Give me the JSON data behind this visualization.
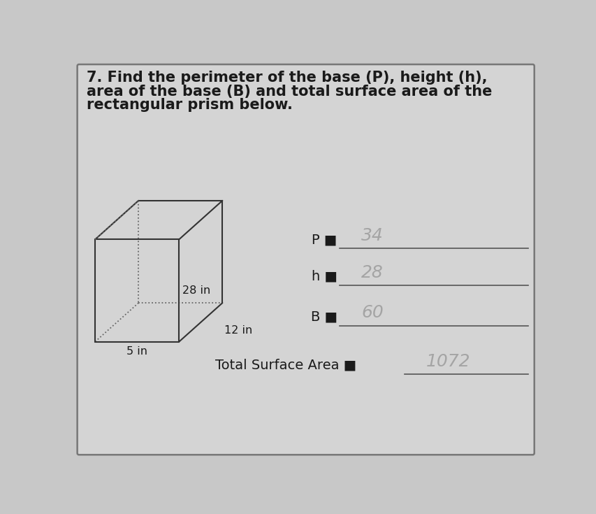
{
  "title_line1": "7. Find the perimeter of the base (P), height (h),",
  "title_line2": "area of the base (B) and total surface area of the",
  "title_line3": "rectangular prism below.",
  "dim_height": "28 in",
  "dim_width": "12 in",
  "dim_depth": "5 in",
  "label_P": "P ■",
  "label_h": "h ■",
  "label_B": "B ■",
  "label_TSA": "Total Surface Area ■",
  "answer_P": "34",
  "answer_h": "28",
  "answer_B": "60",
  "answer_TSA": "1072",
  "bg_color": "#c8c8c8",
  "inner_bg": "#d0d0d0",
  "text_color": "#1a1a1a",
  "prism_solid_color": "#333333",
  "prism_dash_color": "#666666",
  "answer_color": "#999999",
  "line_color": "#555555",
  "title_fontsize": 15,
  "label_fontsize": 14,
  "dim_fontsize": 11.5,
  "answer_fontsize": 16
}
